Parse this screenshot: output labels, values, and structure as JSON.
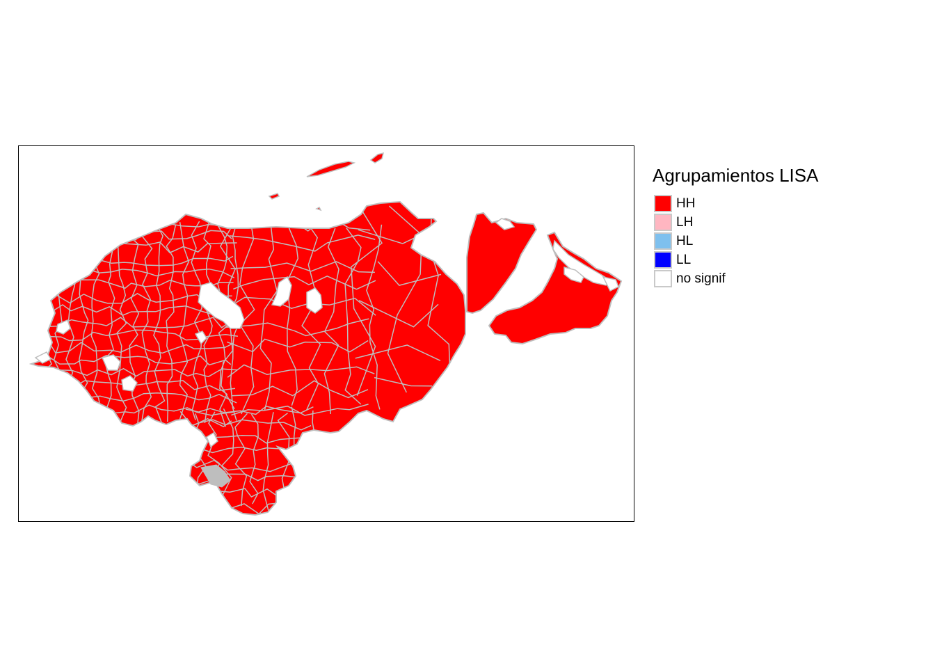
{
  "legend": {
    "title": "Agrupamientos LISA",
    "items": [
      {
        "label": "HH",
        "color": "#ff0000"
      },
      {
        "label": "LH",
        "color": "#ffb6c1"
      },
      {
        "label": "HL",
        "color": "#7ec0ee"
      },
      {
        "label": "LL",
        "color": "#0000ff"
      },
      {
        "label": "no signif",
        "color": "#ffffff"
      }
    ]
  },
  "map": {
    "fill": "#ff0000",
    "border_color": "#bebebe"
  }
}
